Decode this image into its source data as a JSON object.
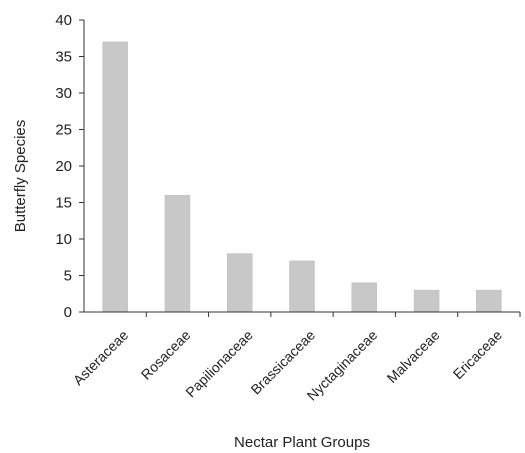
{
  "chart_data": {
    "type": "bar",
    "categories": [
      "Asteraceae",
      "Rosaceae",
      "Papilionaceae",
      "Brassicaceae",
      "Nyctaginaceae",
      "Malvaceae",
      "Ericaceae"
    ],
    "values": [
      37,
      16,
      8,
      7,
      4,
      3,
      3
    ],
    "title": "",
    "xlabel": "Nectar Plant Groups",
    "ylabel": "Butterfly Species",
    "ylim": [
      0,
      40
    ],
    "yticks": [
      "0",
      "5",
      "10",
      "15",
      "20",
      "25",
      "30",
      "35",
      "40"
    ],
    "grid": false,
    "legend": "none",
    "bar_color": "#c8c8c8",
    "axis_color": "#333333"
  }
}
